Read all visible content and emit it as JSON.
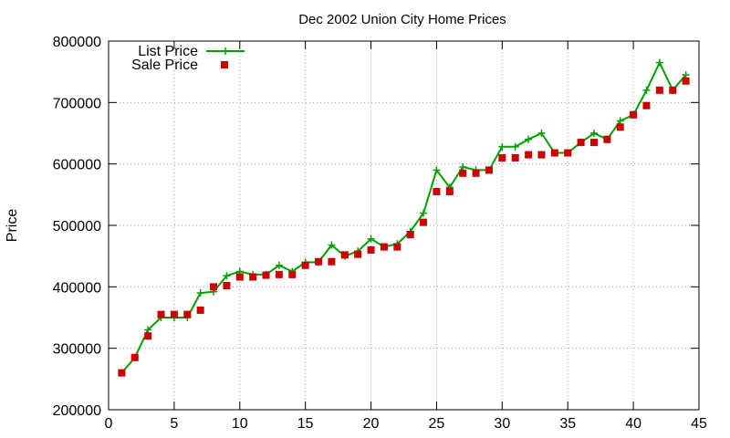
{
  "chart_data": {
    "type": "line",
    "title": "Dec 2002 Union City Home Prices",
    "xlabel": "",
    "ylabel": "Price",
    "xlim": [
      0,
      45
    ],
    "ylim": [
      200000,
      800000
    ],
    "x_ticks": [
      0,
      5,
      10,
      15,
      20,
      25,
      30,
      35,
      40,
      45
    ],
    "y_ticks": [
      200000,
      300000,
      400000,
      500000,
      600000,
      700000,
      800000
    ],
    "grid": true,
    "legend_position": "top-left",
    "series": [
      {
        "name": "List Price",
        "style": "line-plus-markers",
        "color": "#00a000",
        "x": [
          1,
          2,
          3,
          4,
          5,
          6,
          7,
          8,
          9,
          10,
          11,
          12,
          13,
          14,
          15,
          16,
          17,
          18,
          19,
          20,
          21,
          22,
          23,
          24,
          25,
          26,
          27,
          28,
          29,
          30,
          31,
          32,
          33,
          34,
          35,
          36,
          37,
          38,
          39,
          40,
          41,
          42,
          43,
          44
        ],
        "values": [
          260000,
          285000,
          330000,
          350000,
          350000,
          350000,
          390000,
          392000,
          418000,
          425000,
          420000,
          420000,
          435000,
          425000,
          440000,
          440000,
          468000,
          450000,
          458000,
          478000,
          465000,
          470000,
          490000,
          520000,
          590000,
          562000,
          595000,
          590000,
          590000,
          628000,
          628000,
          640000,
          650000,
          618000,
          618000,
          635000,
          650000,
          640000,
          670000,
          680000,
          720000,
          765000,
          720000,
          745000
        ]
      },
      {
        "name": "Sale Price",
        "style": "markers",
        "color": "#cc0000",
        "x": [
          1,
          2,
          3,
          4,
          5,
          6,
          7,
          8,
          9,
          10,
          11,
          12,
          13,
          14,
          15,
          16,
          17,
          18,
          19,
          20,
          21,
          22,
          23,
          24,
          25,
          26,
          27,
          28,
          29,
          30,
          31,
          32,
          33,
          34,
          35,
          36,
          37,
          38,
          39,
          40,
          41,
          42,
          43,
          44
        ],
        "values": [
          260000,
          285000,
          320000,
          355000,
          355000,
          355000,
          362000,
          400000,
          402000,
          416000,
          416000,
          419000,
          420000,
          420000,
          435000,
          441000,
          441000,
          452000,
          453000,
          460000,
          465000,
          465000,
          485000,
          505000,
          555000,
          555000,
          585000,
          585000,
          590000,
          610000,
          610000,
          615000,
          615000,
          618000,
          618000,
          635000,
          635000,
          640000,
          660000,
          680000,
          695000,
          720000,
          720000,
          735000
        ]
      }
    ]
  }
}
